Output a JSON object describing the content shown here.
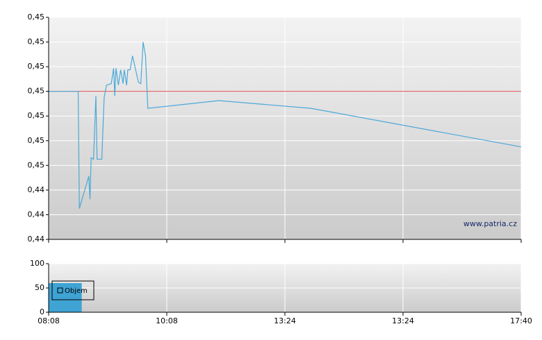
{
  "chart_data": [
    {
      "type": "line",
      "x": [
        0,
        0.25,
        0.26,
        0.34,
        0.35,
        0.36,
        0.38,
        0.4,
        0.41,
        0.45,
        0.47,
        0.49,
        0.53,
        0.55,
        0.56,
        0.57,
        0.59,
        0.61,
        0.63,
        0.64,
        0.66,
        0.67,
        0.69,
        0.71,
        0.76,
        0.78,
        0.8,
        0.82,
        0.84,
        1.44,
        2.22,
        4
      ],
      "series": [
        {
          "color": "#4aa8d8",
          "values": [
            0.4496,
            0.4496,
            0.442,
            0.4441,
            0.4426,
            0.4453,
            0.4452,
            0.4493,
            0.4452,
            0.4452,
            0.4492,
            0.45,
            0.4501,
            0.4511,
            0.4493,
            0.4511,
            0.45,
            0.451,
            0.4501,
            0.451,
            0.45,
            0.451,
            0.451,
            0.4519,
            0.4502,
            0.4501,
            0.4528,
            0.4519,
            0.4485,
            0.449,
            0.4485,
            0.446
          ]
        }
      ],
      "reference_line": {
        "value": 0.4496,
        "color": "#e05050"
      },
      "xlim": [
        0,
        4
      ],
      "ylim": [
        0.44,
        0.4544
      ],
      "yticks": [
        {
          "value": 0.44,
          "label": "0,44"
        },
        {
          "value": 0.4416,
          "label": "0,44"
        },
        {
          "value": 0.4432,
          "label": "0,44"
        },
        {
          "value": 0.4448,
          "label": "0,45"
        },
        {
          "value": 0.4464,
          "label": "0,45"
        },
        {
          "value": 0.448,
          "label": "0,45"
        },
        {
          "value": 0.4496,
          "label": "0,45"
        },
        {
          "value": 0.4512,
          "label": "0,45"
        },
        {
          "value": 0.4528,
          "label": "0,45"
        },
        {
          "value": 0.4544,
          "label": "0,45"
        }
      ],
      "grid": true,
      "watermark": "www.patria.cz"
    },
    {
      "type": "histogram",
      "series": [
        {
          "name": "Objem",
          "color": "#3fa3d4",
          "bins": [
            0,
            0.28
          ],
          "values": [
            60
          ]
        }
      ],
      "xlim": [
        0,
        4
      ],
      "xticks": [
        {
          "value": 0,
          "label": "08:08"
        },
        {
          "value": 1,
          "label": "10:08"
        },
        {
          "value": 2,
          "label": "13:24"
        },
        {
          "value": 3,
          "label": "13:24"
        },
        {
          "value": 4,
          "label": "17:40"
        }
      ],
      "ylim": [
        0,
        100
      ],
      "yticks": [
        0,
        50,
        100
      ],
      "grid": true
    }
  ]
}
